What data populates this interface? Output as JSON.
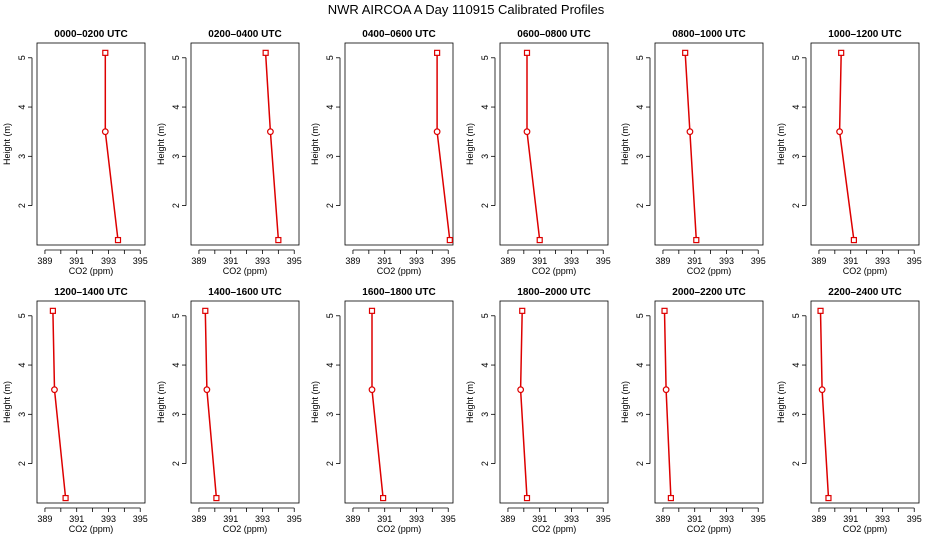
{
  "title": "NWR AIRCOA A  Day 110915  Calibrated Profiles",
  "chart_data": {
    "type": "line",
    "xlabel": "CO2 (ppm)",
    "ylabel": "Height (m)",
    "xlim": [
      388.5,
      395.3
    ],
    "ylim": [
      1.2,
      5.3
    ],
    "xticks": [
      389,
      391,
      393,
      395
    ],
    "yticks": [
      2,
      3,
      4,
      5
    ],
    "line_color": "#dd0000",
    "panels": [
      {
        "title": "0000–0200 UTC",
        "points": [
          {
            "x": 392.8,
            "y": 5.1
          },
          {
            "x": 392.8,
            "y": 3.5
          },
          {
            "x": 393.6,
            "y": 1.3
          }
        ]
      },
      {
        "title": "0200–0400 UTC",
        "points": [
          {
            "x": 393.2,
            "y": 5.1
          },
          {
            "x": 393.5,
            "y": 3.5
          },
          {
            "x": 394.0,
            "y": 1.3
          }
        ]
      },
      {
        "title": "0400–0600 UTC",
        "points": [
          {
            "x": 394.3,
            "y": 5.1
          },
          {
            "x": 394.3,
            "y": 3.5
          },
          {
            "x": 395.1,
            "y": 1.3
          }
        ]
      },
      {
        "title": "0600–0800 UTC",
        "points": [
          {
            "x": 390.2,
            "y": 5.1
          },
          {
            "x": 390.2,
            "y": 3.5
          },
          {
            "x": 391.0,
            "y": 1.3
          }
        ]
      },
      {
        "title": "0800–1000 UTC",
        "points": [
          {
            "x": 390.4,
            "y": 5.1
          },
          {
            "x": 390.7,
            "y": 3.5
          },
          {
            "x": 391.1,
            "y": 1.3
          }
        ]
      },
      {
        "title": "1000–1200 UTC",
        "points": [
          {
            "x": 390.4,
            "y": 5.1
          },
          {
            "x": 390.3,
            "y": 3.5
          },
          {
            "x": 391.2,
            "y": 1.3
          }
        ]
      },
      {
        "title": "1200–1400 UTC",
        "points": [
          {
            "x": 389.5,
            "y": 5.1
          },
          {
            "x": 389.6,
            "y": 3.5
          },
          {
            "x": 390.3,
            "y": 1.3
          }
        ]
      },
      {
        "title": "1400–1600 UTC",
        "points": [
          {
            "x": 389.4,
            "y": 5.1
          },
          {
            "x": 389.5,
            "y": 3.5
          },
          {
            "x": 390.1,
            "y": 1.3
          }
        ]
      },
      {
        "title": "1600–1800 UTC",
        "points": [
          {
            "x": 390.2,
            "y": 5.1
          },
          {
            "x": 390.2,
            "y": 3.5
          },
          {
            "x": 390.9,
            "y": 1.3
          }
        ]
      },
      {
        "title": "1800–2000 UTC",
        "points": [
          {
            "x": 389.9,
            "y": 5.1
          },
          {
            "x": 389.8,
            "y": 3.5
          },
          {
            "x": 390.2,
            "y": 1.3
          }
        ]
      },
      {
        "title": "2000–2200 UTC",
        "points": [
          {
            "x": 389.1,
            "y": 5.1
          },
          {
            "x": 389.2,
            "y": 3.5
          },
          {
            "x": 389.5,
            "y": 1.3
          }
        ]
      },
      {
        "title": "2200–2400 UTC",
        "points": [
          {
            "x": 389.1,
            "y": 5.1
          },
          {
            "x": 389.2,
            "y": 3.5
          },
          {
            "x": 389.6,
            "y": 1.3
          }
        ]
      }
    ]
  }
}
